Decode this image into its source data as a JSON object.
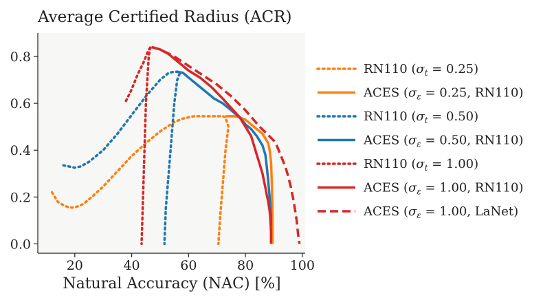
{
  "chart_data": {
    "type": "line",
    "title": "Average Certified Radius (ACR)",
    "xlabel": "Natural Accuracy (NAC) [%]",
    "ylabel": "",
    "xlim": [
      7,
      101
    ],
    "ylim": [
      -0.04,
      0.9
    ],
    "xticks": [
      20,
      40,
      60,
      80,
      100
    ],
    "yticks": [
      0.0,
      0.2,
      0.4,
      0.6,
      0.8
    ],
    "ytick_labels": [
      "0.0",
      "0.2",
      "0.4",
      "0.6",
      "0.8"
    ],
    "grid": false,
    "legend_position": "right",
    "background": "#f7f7f5",
    "series": [
      {
        "name": "RN110 (σt = 0.25)",
        "color": "#ff7f0e",
        "style": "dotted",
        "x": [
          12,
          14,
          16,
          18,
          20,
          23,
          26,
          30,
          35,
          40,
          45,
          50,
          55,
          58,
          60,
          62,
          65,
          68,
          71,
          72,
          73,
          74,
          73,
          72,
          71,
          70.5
        ],
        "y": [
          0.22,
          0.18,
          0.165,
          0.155,
          0.155,
          0.17,
          0.2,
          0.245,
          0.31,
          0.375,
          0.43,
          0.48,
          0.52,
          0.535,
          0.54,
          0.545,
          0.545,
          0.545,
          0.545,
          0.545,
          0.54,
          0.5,
          0.4,
          0.25,
          0.1,
          0.0
        ]
      },
      {
        "name": "ACES (σε = 0.25, RN110)",
        "color": "#ff7f0e",
        "style": "solid",
        "x": [
          73,
          76,
          78,
          80,
          82,
          84,
          86,
          87,
          88,
          88.5,
          89,
          89.3,
          89.5,
          89.5
        ],
        "y": [
          0.545,
          0.545,
          0.54,
          0.53,
          0.51,
          0.49,
          0.47,
          0.45,
          0.43,
          0.4,
          0.35,
          0.25,
          0.12,
          0.0
        ]
      },
      {
        "name": "RN110 (σt = 0.50)",
        "color": "#1f77b4",
        "style": "dotted",
        "x": [
          16,
          18,
          20,
          22,
          25,
          30,
          35,
          40,
          45,
          50,
          53,
          55,
          56,
          57,
          56,
          55,
          54,
          53,
          52,
          51.5
        ],
        "y": [
          0.335,
          0.33,
          0.325,
          0.33,
          0.35,
          0.4,
          0.47,
          0.55,
          0.63,
          0.7,
          0.73,
          0.735,
          0.735,
          0.73,
          0.7,
          0.6,
          0.45,
          0.3,
          0.15,
          0.0
        ]
      },
      {
        "name": "ACES (σε = 0.50, RN110)",
        "color": "#1f77b4",
        "style": "solid",
        "x": [
          56,
          58,
          60,
          63,
          66,
          69,
          72,
          75,
          78,
          80,
          82,
          84,
          85,
          86,
          87,
          87.5,
          88,
          88.5,
          89,
          89
        ],
        "y": [
          0.735,
          0.73,
          0.71,
          0.68,
          0.65,
          0.62,
          0.6,
          0.57,
          0.54,
          0.51,
          0.49,
          0.46,
          0.44,
          0.42,
          0.38,
          0.33,
          0.27,
          0.2,
          0.12,
          0.08
        ]
      },
      {
        "name": "RN110 (σt = 1.00)",
        "color": "#d62728",
        "style": "dotted",
        "x": [
          38,
          40,
          42,
          44,
          45,
          46,
          47,
          46.5,
          46,
          45,
          44.5,
          44,
          43.5
        ],
        "y": [
          0.61,
          0.66,
          0.72,
          0.77,
          0.8,
          0.83,
          0.84,
          0.84,
          0.8,
          0.6,
          0.4,
          0.2,
          0.0
        ]
      },
      {
        "name": "ACES (σε = 1.00, RN110)",
        "color": "#d62728",
        "style": "solid",
        "x": [
          47,
          50,
          53,
          56,
          60,
          64,
          68,
          72,
          75,
          78,
          80,
          82,
          83,
          84,
          85,
          86,
          86.5,
          87,
          87.5,
          88,
          88.5,
          88.8,
          89,
          89
        ],
        "y": [
          0.84,
          0.83,
          0.81,
          0.78,
          0.74,
          0.71,
          0.67,
          0.62,
          0.58,
          0.54,
          0.5,
          0.46,
          0.42,
          0.38,
          0.34,
          0.3,
          0.27,
          0.24,
          0.21,
          0.18,
          0.14,
          0.1,
          0.05,
          0.0
        ]
      },
      {
        "name": "ACES (σε = 1.00, LaNet)",
        "color": "#d62728",
        "style": "dashed",
        "x": [
          47,
          50,
          55,
          60,
          65,
          70,
          75,
          80,
          85,
          88,
          90,
          91,
          92,
          93,
          94,
          95,
          96,
          97,
          98,
          98.5,
          99
        ],
        "y": [
          0.84,
          0.83,
          0.8,
          0.76,
          0.72,
          0.68,
          0.63,
          0.57,
          0.5,
          0.465,
          0.44,
          0.42,
          0.39,
          0.36,
          0.33,
          0.29,
          0.24,
          0.18,
          0.1,
          0.04,
          0.0
        ]
      }
    ]
  },
  "legend": [
    {
      "prefix": "RN110 (",
      "sym": "σ",
      "sub": "t",
      "suffix": " = 0.25)"
    },
    {
      "prefix": "ACES (",
      "sym": "σ",
      "sub": "ε",
      "suffix": " = 0.25, RN110)"
    },
    {
      "prefix": "RN110 (",
      "sym": "σ",
      "sub": "t",
      "suffix": " = 0.50)"
    },
    {
      "prefix": "ACES (",
      "sym": "σ",
      "sub": "ε",
      "suffix": " = 0.50, RN110)"
    },
    {
      "prefix": "RN110 (",
      "sym": "σ",
      "sub": "t",
      "suffix": " = 1.00)"
    },
    {
      "prefix": "ACES (",
      "sym": "σ",
      "sub": "ε",
      "suffix": " = 1.00, RN110)"
    },
    {
      "prefix": "ACES (",
      "sym": "σ",
      "sub": "ε",
      "suffix": " = 1.00, LaNet)"
    }
  ]
}
